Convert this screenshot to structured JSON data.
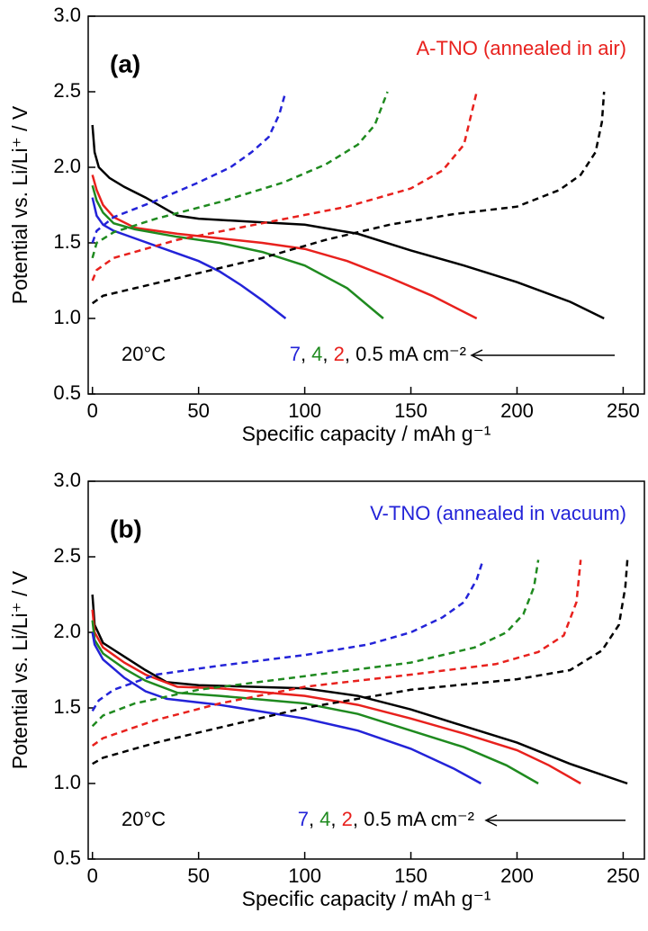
{
  "chart_data": [
    {
      "type": "line",
      "panel_label": "(a)",
      "label": "A-TNO (annealed in air)",
      "label_color": "#e8211d",
      "x_label": "Specific capacity / mAh g⁻¹",
      "y_label": "Potential vs. Li/Li⁺ / V",
      "temperature": "20°C",
      "rates": [
        {
          "text": "7",
          "color": "#2323d8"
        },
        {
          "text": ", ",
          "color": "#000000"
        },
        {
          "text": "4",
          "color": "#1f8a1f"
        },
        {
          "text": ", ",
          "color": "#000000"
        },
        {
          "text": "2",
          "color": "#e8211d"
        },
        {
          "text": ", 0.5 mA cm⁻²",
          "color": "#000000"
        }
      ],
      "xlim": [
        -2,
        260
      ],
      "ylim": [
        0.5,
        3.0
      ],
      "xticks": [
        0,
        50,
        100,
        150,
        200,
        250
      ],
      "yticks": [
        0.5,
        {
          "value": 1,
          "label": "1.0"
        },
        1.5,
        {
          "value": 2,
          "label": "2.0"
        },
        2.5,
        {
          "value": 3,
          "label": "3.0"
        }
      ],
      "series": [
        {
          "color": "#000000",
          "dashed": false,
          "x": [
            0,
            1,
            3,
            8,
            15,
            25,
            40,
            50,
            75,
            100,
            125,
            150,
            175,
            200,
            225,
            241
          ],
          "values": [
            2.28,
            2.1,
            2.0,
            1.93,
            1.87,
            1.8,
            1.68,
            1.66,
            1.64,
            1.62,
            1.56,
            1.45,
            1.35,
            1.24,
            1.11,
            1.0
          ]
        },
        {
          "color": "#e8211d",
          "dashed": false,
          "x": [
            0,
            2,
            5,
            10,
            20,
            40,
            60,
            80,
            100,
            120,
            140,
            160,
            181
          ],
          "values": [
            1.95,
            1.85,
            1.75,
            1.67,
            1.6,
            1.56,
            1.53,
            1.5,
            1.46,
            1.38,
            1.27,
            1.15,
            1.0
          ]
        },
        {
          "color": "#1f8a1f",
          "dashed": false,
          "x": [
            0,
            2,
            5,
            10,
            20,
            40,
            60,
            80,
            100,
            120,
            137
          ],
          "values": [
            1.88,
            1.78,
            1.7,
            1.63,
            1.59,
            1.54,
            1.5,
            1.44,
            1.35,
            1.2,
            1.0
          ]
        },
        {
          "color": "#2323d8",
          "dashed": false,
          "x": [
            0,
            2,
            5,
            10,
            20,
            30,
            50,
            60,
            70,
            80,
            91
          ],
          "values": [
            1.8,
            1.68,
            1.62,
            1.58,
            1.53,
            1.48,
            1.38,
            1.31,
            1.22,
            1.12,
            1.0
          ]
        },
        {
          "color": "#2323d8",
          "dashed": true,
          "x": [
            0,
            2,
            10,
            30,
            50,
            65,
            75,
            83,
            88,
            91
          ],
          "values": [
            1.5,
            1.58,
            1.67,
            1.78,
            1.9,
            2.0,
            2.1,
            2.2,
            2.35,
            2.5
          ]
        },
        {
          "color": "#1f8a1f",
          "dashed": true,
          "x": [
            0,
            2,
            10,
            30,
            60,
            90,
            110,
            125,
            133,
            139
          ],
          "values": [
            1.4,
            1.5,
            1.57,
            1.66,
            1.77,
            1.9,
            2.02,
            2.15,
            2.28,
            2.5
          ]
        },
        {
          "color": "#e8211d",
          "dashed": true,
          "x": [
            0,
            2,
            10,
            40,
            80,
            120,
            150,
            165,
            175,
            181
          ],
          "values": [
            1.25,
            1.32,
            1.4,
            1.52,
            1.63,
            1.74,
            1.86,
            1.98,
            2.15,
            2.5
          ]
        },
        {
          "color": "#000000",
          "dashed": true,
          "x": [
            0,
            5,
            20,
            50,
            80,
            110,
            140,
            170,
            200,
            220,
            230,
            237,
            240,
            241
          ],
          "values": [
            1.1,
            1.15,
            1.2,
            1.3,
            1.4,
            1.52,
            1.62,
            1.69,
            1.74,
            1.85,
            1.95,
            2.1,
            2.3,
            2.5
          ]
        }
      ]
    },
    {
      "type": "line",
      "panel_label": "(b)",
      "label": "V-TNO (annealed in vacuum)",
      "label_color": "#2323d8",
      "x_label": "Specific capacity / mAh g⁻¹",
      "y_label": "Potential vs. Li/Li⁺ / V",
      "temperature": "20°C",
      "rates": [
        {
          "text": "7",
          "color": "#2323d8"
        },
        {
          "text": ", ",
          "color": "#000000"
        },
        {
          "text": "4",
          "color": "#1f8a1f"
        },
        {
          "text": ", ",
          "color": "#000000"
        },
        {
          "text": "2",
          "color": "#e8211d"
        },
        {
          "text": ", 0.5 mA cm⁻²",
          "color": "#000000"
        }
      ],
      "xlim": [
        -2,
        260
      ],
      "ylim": [
        0.5,
        3.0
      ],
      "xticks": [
        0,
        50,
        100,
        150,
        200,
        250
      ],
      "yticks": [
        0.5,
        {
          "value": 1,
          "label": "1.0"
        },
        1.5,
        {
          "value": 2,
          "label": "2.0"
        },
        2.5,
        {
          "value": 3,
          "label": "3.0"
        }
      ],
      "series": [
        {
          "color": "#000000",
          "dashed": false,
          "x": [
            0,
            1,
            5,
            15,
            25,
            35,
            50,
            75,
            100,
            125,
            150,
            175,
            200,
            225,
            252
          ],
          "values": [
            2.25,
            2.05,
            1.93,
            1.84,
            1.75,
            1.67,
            1.65,
            1.64,
            1.63,
            1.58,
            1.49,
            1.38,
            1.27,
            1.13,
            1.0
          ]
        },
        {
          "color": "#e8211d",
          "dashed": false,
          "x": [
            0,
            1,
            5,
            15,
            25,
            40,
            60,
            100,
            125,
            150,
            175,
            200,
            215,
            230
          ],
          "values": [
            2.15,
            2.0,
            1.9,
            1.8,
            1.72,
            1.64,
            1.63,
            1.58,
            1.52,
            1.43,
            1.33,
            1.22,
            1.12,
            1.0
          ]
        },
        {
          "color": "#1f8a1f",
          "dashed": false,
          "x": [
            0,
            1,
            5,
            15,
            25,
            40,
            60,
            100,
            125,
            150,
            175,
            195,
            210
          ],
          "values": [
            2.08,
            1.95,
            1.86,
            1.76,
            1.68,
            1.6,
            1.58,
            1.53,
            1.46,
            1.35,
            1.24,
            1.12,
            1.0
          ]
        },
        {
          "color": "#2323d8",
          "dashed": false,
          "x": [
            0,
            1,
            5,
            15,
            25,
            35,
            60,
            100,
            125,
            150,
            170,
            183
          ],
          "values": [
            2.0,
            1.92,
            1.82,
            1.7,
            1.61,
            1.56,
            1.52,
            1.43,
            1.35,
            1.23,
            1.1,
            1.0
          ]
        },
        {
          "color": "#2323d8",
          "dashed": true,
          "x": [
            0,
            3,
            10,
            30,
            60,
            100,
            130,
            150,
            165,
            175,
            181,
            184
          ],
          "values": [
            1.48,
            1.55,
            1.62,
            1.72,
            1.78,
            1.85,
            1.92,
            2.0,
            2.1,
            2.2,
            2.35,
            2.48
          ]
        },
        {
          "color": "#1f8a1f",
          "dashed": true,
          "x": [
            0,
            5,
            20,
            50,
            100,
            150,
            180,
            195,
            203,
            208,
            210
          ],
          "values": [
            1.38,
            1.45,
            1.53,
            1.62,
            1.71,
            1.8,
            1.9,
            2.0,
            2.12,
            2.3,
            2.48
          ]
        },
        {
          "color": "#e8211d",
          "dashed": true,
          "x": [
            0,
            5,
            30,
            60,
            100,
            150,
            190,
            210,
            222,
            228,
            230
          ],
          "values": [
            1.25,
            1.3,
            1.42,
            1.53,
            1.64,
            1.72,
            1.79,
            1.87,
            1.98,
            2.2,
            2.48
          ]
        },
        {
          "color": "#000000",
          "dashed": true,
          "x": [
            0,
            5,
            30,
            60,
            100,
            150,
            200,
            225,
            240,
            248,
            251,
            252
          ],
          "values": [
            1.13,
            1.17,
            1.27,
            1.37,
            1.5,
            1.62,
            1.69,
            1.75,
            1.88,
            2.05,
            2.3,
            2.48
          ]
        }
      ]
    }
  ]
}
